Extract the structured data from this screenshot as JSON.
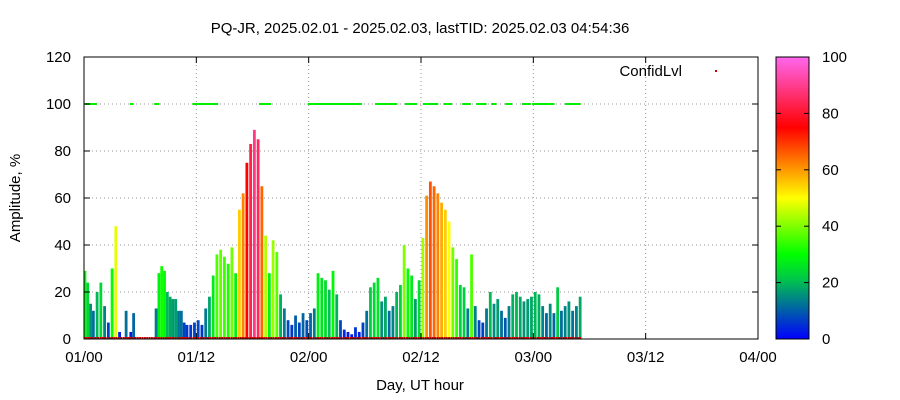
{
  "chart_data": {
    "type": "area",
    "title": "PQ-JR, 2025.02.01 - 2025.02.03, lastTID: 2025.02.03 04:54:36",
    "xlabel": "Day, UT hour",
    "ylabel": "Amplitude, %",
    "xlim": [
      0,
      72
    ],
    "ylim": [
      0,
      120
    ],
    "x_ticks": [
      {
        "value": 0,
        "label": "01/00"
      },
      {
        "value": 12,
        "label": "01/12"
      },
      {
        "value": 24,
        "label": "02/00"
      },
      {
        "value": 36,
        "label": "02/12"
      },
      {
        "value": 48,
        "label": "03/00"
      },
      {
        "value": 60,
        "label": "03/12"
      },
      {
        "value": 72,
        "label": "04/00"
      }
    ],
    "y_ticks": [
      0,
      20,
      40,
      60,
      80,
      100,
      120
    ],
    "grid": true,
    "legend": {
      "position": "top-right",
      "label": "ConfidLvl"
    },
    "colorbar": {
      "range": [
        0,
        100
      ],
      "ticks": [
        0,
        20,
        40,
        60,
        80,
        100
      ],
      "colors": [
        "#0000ff",
        "#00ff00",
        "#ffff00",
        "#ff0000",
        "#ff66ff"
      ]
    },
    "series": [
      {
        "type": "amplitude-bars",
        "colored_by": "amplitude",
        "x": [
          0.1,
          0.4,
          0.7,
          1.0,
          1.4,
          1.8,
          2.2,
          2.6,
          3.0,
          3.4,
          3.8,
          4.5,
          5.0,
          5.3,
          7.7,
          8.0,
          8.3,
          8.6,
          8.9,
          9.2,
          9.5,
          9.8,
          10.1,
          10.4,
          10.7,
          11.0,
          11.4,
          11.8,
          12.2,
          12.6,
          13.0,
          13.4,
          13.8,
          14.2,
          14.6,
          15.0,
          15.4,
          15.8,
          16.2,
          16.6,
          17.0,
          17.4,
          17.8,
          18.2,
          18.6,
          19.0,
          19.4,
          19.8,
          20.2,
          20.6,
          21.0,
          21.4,
          21.8,
          22.2,
          22.6,
          23.0,
          23.4,
          23.8,
          24.2,
          24.6,
          25.0,
          25.4,
          25.8,
          26.2,
          26.6,
          27.0,
          27.4,
          27.8,
          28.2,
          28.6,
          29.0,
          29.4,
          29.8,
          30.2,
          30.6,
          31.0,
          31.4,
          31.8,
          32.2,
          32.6,
          33.0,
          33.4,
          33.8,
          34.2,
          34.6,
          35.0,
          35.4,
          35.8,
          36.2,
          36.6,
          37.0,
          37.4,
          37.8,
          38.2,
          38.6,
          39.0,
          39.4,
          39.8,
          40.2,
          40.6,
          41.0,
          41.4,
          41.8,
          42.2,
          42.6,
          43.0,
          43.4,
          43.8,
          44.2,
          44.6,
          45.0,
          45.4,
          45.8,
          46.2,
          46.6,
          47.0,
          47.4,
          47.8,
          48.2,
          48.6,
          49.0,
          49.4,
          49.8,
          50.2,
          50.6,
          51.0,
          51.4,
          51.8,
          52.2,
          52.6,
          53.0
        ],
        "y": [
          29,
          24,
          15,
          12,
          20,
          24,
          14,
          7,
          30,
          48,
          3,
          12,
          3,
          11,
          13,
          28,
          31,
          29,
          20,
          18,
          17,
          17,
          12,
          12,
          7,
          6,
          6,
          7,
          8,
          6,
          13,
          18,
          27,
          36,
          38,
          35,
          32,
          39,
          28,
          55,
          62,
          75,
          83,
          89,
          85,
          65,
          44,
          28,
          42,
          37,
          19,
          13,
          8,
          6,
          10,
          7,
          11,
          8,
          11,
          13,
          28,
          26,
          25,
          21,
          29,
          19,
          8,
          4,
          3,
          2,
          5,
          3,
          7,
          12,
          22,
          24,
          26,
          16,
          18,
          12,
          14,
          20,
          23,
          40,
          30,
          27,
          17,
          25,
          43,
          61,
          67,
          65,
          62,
          58,
          55,
          50,
          39,
          34,
          23,
          22,
          13,
          36,
          14,
          8,
          7,
          13,
          20,
          15,
          17,
          12,
          9,
          14,
          19,
          20,
          18,
          16,
          17,
          18,
          20,
          19,
          14,
          11,
          15,
          11,
          22,
          12,
          14,
          16,
          12,
          14,
          18
        ]
      },
      {
        "name": "ConfidLvl",
        "type": "scatter",
        "color": "#00ee00",
        "y": 100,
        "x_intervals": [
          [
            0.2,
            1.3
          ],
          [
            5.0,
            5.3
          ],
          [
            7.6,
            8.1
          ],
          [
            11.7,
            14.3
          ],
          [
            18.8,
            19.9
          ],
          [
            24.0,
            29.6
          ],
          [
            31.2,
            33.5
          ],
          [
            34.4,
            35.5
          ],
          [
            36.3,
            37.9
          ],
          [
            38.5,
            39.3
          ],
          [
            40.5,
            41.3
          ],
          [
            42.0,
            42.9
          ],
          [
            43.6,
            44.0
          ],
          [
            45.1,
            45.8
          ],
          [
            46.9,
            47.7
          ],
          [
            48.0,
            50.3
          ],
          [
            51.5,
            53.0
          ]
        ]
      },
      {
        "type": "scatter",
        "color": "#cc0000",
        "y": 0,
        "x_range": [
          0,
          53
        ]
      }
    ]
  }
}
